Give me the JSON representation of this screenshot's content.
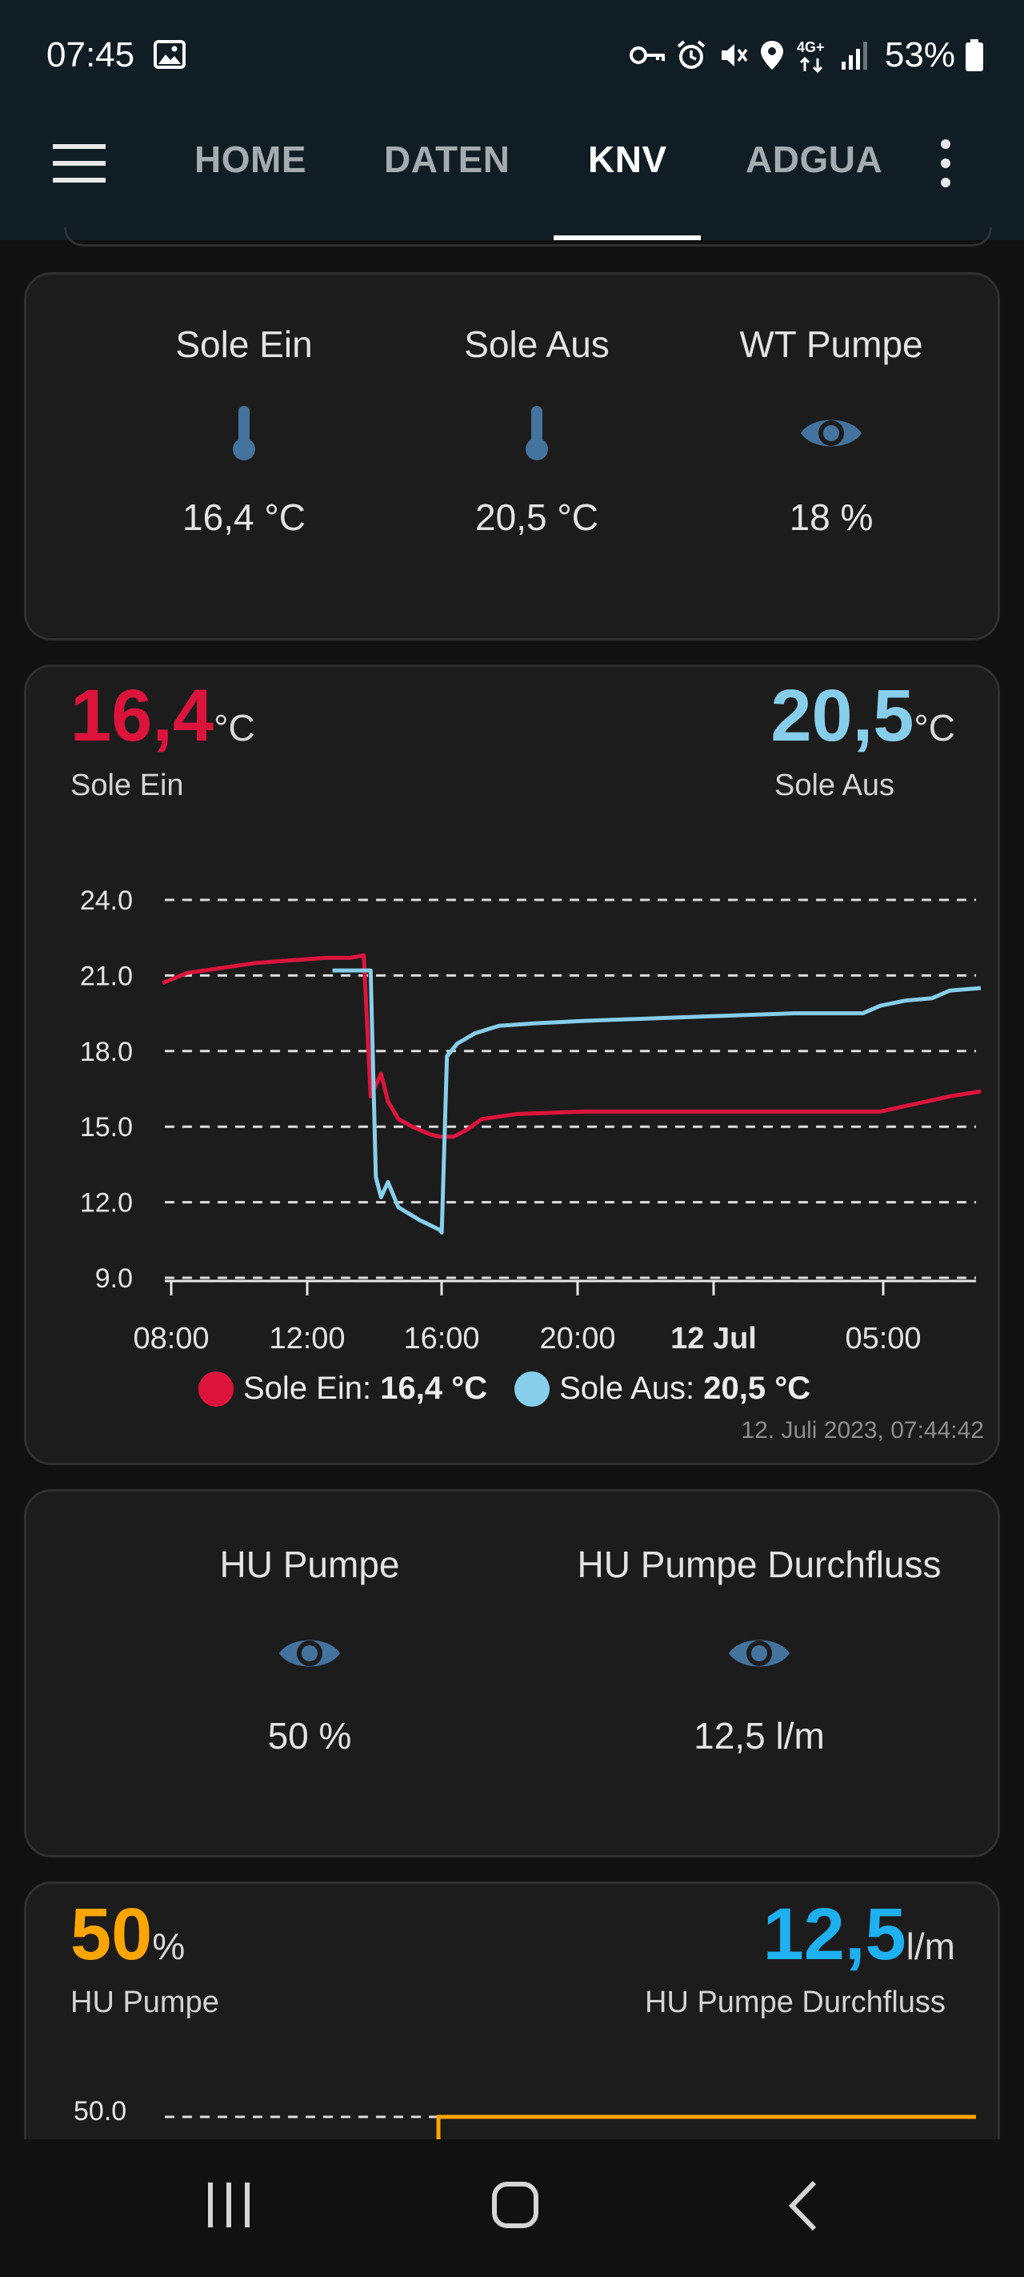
{
  "status_bar": {
    "time": "07:45",
    "battery": "53%",
    "icons": [
      "image-icon",
      "key-icon",
      "alarm-icon",
      "mute-icon",
      "location-icon",
      "4g-icon",
      "signal-icon",
      "battery-icon"
    ]
  },
  "app_bar": {
    "tabs": [
      {
        "label": "HOME"
      },
      {
        "label": "DATEN"
      },
      {
        "label": "KNV"
      },
      {
        "label": "ADGUA"
      }
    ],
    "active_tab": "KNV"
  },
  "card1": {
    "entities": [
      {
        "name": "Sole Ein",
        "icon": "thermometer-icon",
        "state": "16,4 °C"
      },
      {
        "name": "Sole Aus",
        "icon": "thermometer-icon",
        "state": "20,5 °C"
      },
      {
        "name": "WT Pumpe",
        "icon": "eye-icon",
        "state": "18 %"
      }
    ]
  },
  "card2": {
    "left_value": "16,4",
    "left_unit": "°C",
    "left_label": "Sole Ein",
    "right_value": "20,5",
    "right_unit": "°C",
    "right_label": "Sole Aus",
    "legend": [
      {
        "name": "Sole Ein:",
        "value": "16,4 °C"
      },
      {
        "name": "Sole Aus:",
        "value": "20,5 °C"
      }
    ],
    "timestamp": "12. Juli 2023, 07:44:42"
  },
  "card3": {
    "entities": [
      {
        "name": "HU Pumpe",
        "icon": "eye-icon",
        "state": "50 %"
      },
      {
        "name": "HU Pumpe Durchfluss",
        "icon": "eye-icon",
        "state": "12,5 l/m"
      }
    ]
  },
  "card4": {
    "left_value": "50",
    "left_unit": "%",
    "left_label": "HU Pumpe",
    "right_value": "12,5",
    "right_unit": "l/m",
    "right_label": "HU Pumpe Durchfluss",
    "partial_axis_label": "50.0"
  },
  "colors": {
    "sole_ein": "#dc143c",
    "sole_aus": "#87ceeb",
    "hu_pumpe": "#ffa500",
    "hu_durchfluss": "#1eb0f0",
    "icon_blue": "#44739e"
  },
  "chart_data": [
    {
      "type": "line",
      "xlabel": "",
      "ylabel": "",
      "x_ticks": [
        "08:00",
        "12:00",
        "16:00",
        "20:00",
        "12 Jul",
        "05:00"
      ],
      "y_ticks": [
        "9.0",
        "12.0",
        "15.0",
        "18.0",
        "21.0",
        "24.0"
      ],
      "ylim": [
        9,
        24
      ],
      "x_unit": "hours since 11 Jul 08:00",
      "xlim": [
        0,
        23.4
      ],
      "grid": true,
      "series": [
        {
          "name": "Sole Ein",
          "x": [
            -0.2,
            0.5,
            1.5,
            2.5,
            3.5,
            4.5,
            5.2,
            5.6,
            5.8,
            6.1,
            6.3,
            6.6,
            7.0,
            7.5,
            7.8,
            8.2,
            8.6,
            9.0,
            10.0,
            12.0,
            16.0,
            17.0,
            19.0,
            20.5,
            21.5,
            22.5,
            23.4
          ],
          "values": [
            20.7,
            21.1,
            21.3,
            21.5,
            21.6,
            21.7,
            21.7,
            21.8,
            16.2,
            17.1,
            16.0,
            15.3,
            15.0,
            14.7,
            14.6,
            14.6,
            14.9,
            15.3,
            15.5,
            15.6,
            15.6,
            15.6,
            15.6,
            15.6,
            15.9,
            16.2,
            16.4
          ]
        },
        {
          "name": "Sole Aus",
          "x": [
            4.7,
            5.5,
            5.8,
            5.95,
            6.1,
            6.3,
            6.6,
            7.2,
            7.8,
            7.85,
            8.0,
            8.3,
            8.8,
            9.5,
            10.5,
            12.0,
            14.0,
            16.0,
            18.0,
            20.0,
            20.5,
            21.2,
            22.0,
            22.5,
            23.4
          ],
          "values": [
            21.2,
            21.2,
            21.2,
            13.0,
            12.2,
            12.8,
            11.8,
            11.3,
            10.9,
            10.8,
            17.8,
            18.3,
            18.7,
            19.0,
            19.1,
            19.2,
            19.3,
            19.4,
            19.5,
            19.5,
            19.8,
            20.0,
            20.1,
            20.4,
            20.5
          ]
        }
      ]
    }
  ]
}
